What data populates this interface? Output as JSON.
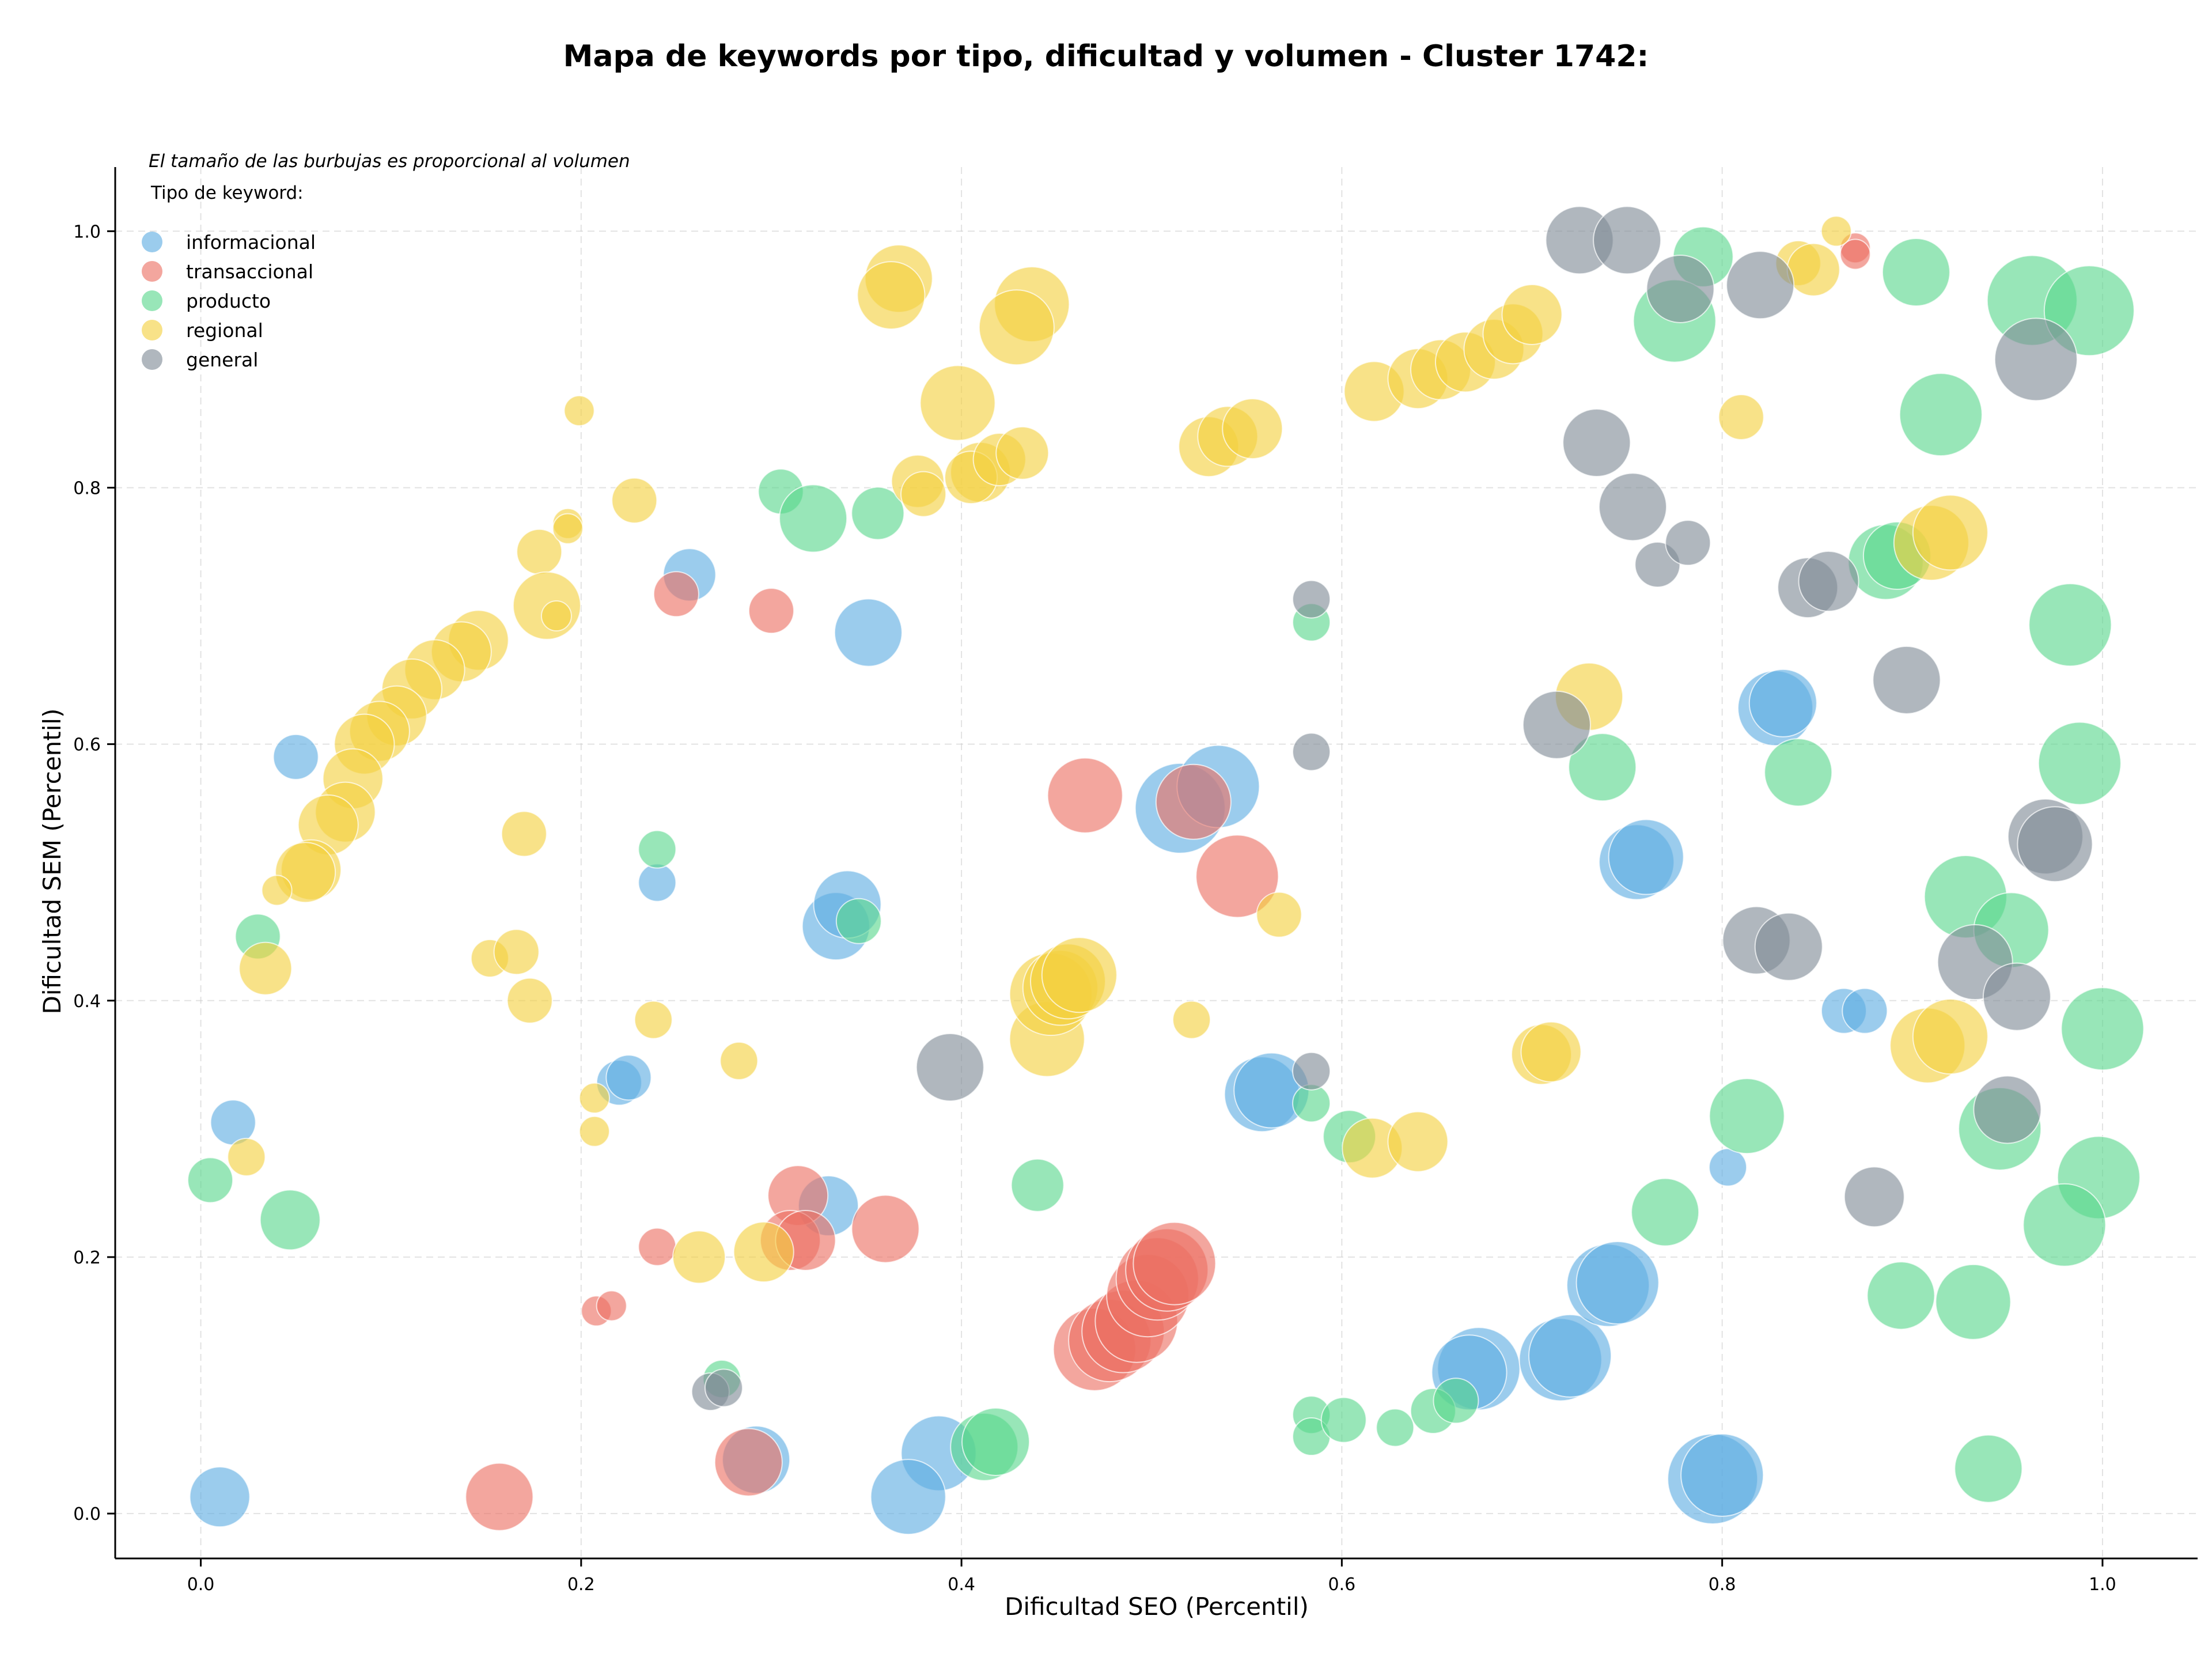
{
  "chart_data": {
    "type": "scatter",
    "title": "Mapa de keywords por tipo, dificultad y volumen - Cluster 1742:",
    "xlabel": "Dificultad SEO (Percentil)",
    "ylabel": "Dificultad SEM (Percentil)",
    "xlim": [
      -0.045,
      1.05
    ],
    "ylim": [
      -0.035,
      1.05
    ],
    "xticks": [
      "0.0",
      "0.2",
      "0.4",
      "0.6",
      "0.8",
      "1.0"
    ],
    "yticks": [
      "0.0",
      "0.2",
      "0.4",
      "0.6",
      "0.8",
      "1.0"
    ],
    "grid": true,
    "annotation": "El tamaño de las burbujas es proporcional al volumen",
    "legend_title": "Tipo de keyword:",
    "legend_position": "top-left",
    "series": [
      {
        "name": "informacional",
        "color": "#5dade2",
        "points": [
          [
            0.05,
            0.59,
            0.3
          ],
          [
            0.017,
            0.305,
            0.3
          ],
          [
            0.01,
            0.013,
            0.4
          ],
          [
            0.257,
            0.732,
            0.35
          ],
          [
            0.351,
            0.687,
            0.45
          ],
          [
            0.24,
            0.492,
            0.25
          ],
          [
            0.22,
            0.336,
            0.3
          ],
          [
            0.225,
            0.34,
            0.3
          ],
          [
            0.334,
            0.458,
            0.45
          ],
          [
            0.34,
            0.475,
            0.45
          ],
          [
            0.33,
            0.24,
            0.4
          ],
          [
            0.292,
            0.042,
            0.45
          ],
          [
            0.388,
            0.047,
            0.5
          ],
          [
            0.372,
            0.013,
            0.5
          ],
          [
            0.515,
            0.55,
            0.6
          ],
          [
            0.535,
            0.567,
            0.55
          ],
          [
            0.558,
            0.327,
            0.5
          ],
          [
            0.563,
            0.33,
            0.5
          ],
          [
            0.672,
            0.113,
            0.55
          ],
          [
            0.667,
            0.11,
            0.5
          ],
          [
            0.715,
            0.12,
            0.55
          ],
          [
            0.72,
            0.123,
            0.55
          ],
          [
            0.74,
            0.178,
            0.55
          ],
          [
            0.745,
            0.18,
            0.55
          ],
          [
            0.755,
            0.508,
            0.5
          ],
          [
            0.76,
            0.512,
            0.5
          ],
          [
            0.795,
            0.027,
            0.6
          ],
          [
            0.8,
            0.03,
            0.55
          ],
          [
            0.828,
            0.628,
            0.5
          ],
          [
            0.832,
            0.632,
            0.45
          ],
          [
            0.803,
            0.27,
            0.25
          ],
          [
            0.864,
            0.392,
            0.3
          ],
          [
            0.875,
            0.392,
            0.3
          ]
        ]
      },
      {
        "name": "transaccional",
        "color": "#ec7063",
        "points": [
          [
            0.25,
            0.717,
            0.3
          ],
          [
            0.3,
            0.704,
            0.3
          ],
          [
            0.208,
            0.158,
            0.2
          ],
          [
            0.216,
            0.162,
            0.2
          ],
          [
            0.24,
            0.208,
            0.25
          ],
          [
            0.314,
            0.248,
            0.4
          ],
          [
            0.31,
            0.213,
            0.4
          ],
          [
            0.318,
            0.213,
            0.4
          ],
          [
            0.36,
            0.222,
            0.45
          ],
          [
            0.157,
            0.013,
            0.45
          ],
          [
            0.288,
            0.04,
            0.45
          ],
          [
            0.465,
            0.56,
            0.5
          ],
          [
            0.545,
            0.497,
            0.55
          ],
          [
            0.522,
            0.555,
            0.5
          ],
          [
            0.47,
            0.128,
            0.55
          ],
          [
            0.478,
            0.135,
            0.55
          ],
          [
            0.485,
            0.142,
            0.55
          ],
          [
            0.492,
            0.15,
            0.55
          ],
          [
            0.498,
            0.17,
            0.55
          ],
          [
            0.503,
            0.183,
            0.55
          ],
          [
            0.508,
            0.19,
            0.55
          ],
          [
            0.512,
            0.195,
            0.55
          ],
          [
            0.87,
            0.987,
            0.2
          ],
          [
            0.87,
            0.982,
            0.2
          ]
        ]
      },
      {
        "name": "producto",
        "color": "#58d68d",
        "points": [
          [
            0.005,
            0.26,
            0.3
          ],
          [
            0.03,
            0.45,
            0.3
          ],
          [
            0.047,
            0.229,
            0.4
          ],
          [
            0.24,
            0.518,
            0.25
          ],
          [
            0.305,
            0.797,
            0.3
          ],
          [
            0.322,
            0.776,
            0.45
          ],
          [
            0.356,
            0.78,
            0.35
          ],
          [
            0.346,
            0.462,
            0.3
          ],
          [
            0.274,
            0.105,
            0.25
          ],
          [
            0.412,
            0.052,
            0.45
          ],
          [
            0.418,
            0.056,
            0.45
          ],
          [
            0.44,
            0.256,
            0.35
          ],
          [
            0.584,
            0.695,
            0.25
          ],
          [
            0.584,
            0.32,
            0.25
          ],
          [
            0.604,
            0.294,
            0.35
          ],
          [
            0.584,
            0.077,
            0.25
          ],
          [
            0.584,
            0.06,
            0.25
          ],
          [
            0.601,
            0.073,
            0.3
          ],
          [
            0.628,
            0.067,
            0.25
          ],
          [
            0.648,
            0.08,
            0.3
          ],
          [
            0.66,
            0.088,
            0.3
          ],
          [
            0.737,
            0.582,
            0.45
          ],
          [
            0.79,
            0.98,
            0.4
          ],
          [
            0.775,
            0.93,
            0.55
          ],
          [
            0.77,
            0.235,
            0.45
          ],
          [
            0.813,
            0.31,
            0.5
          ],
          [
            0.84,
            0.578,
            0.45
          ],
          [
            0.886,
            0.742,
            0.5
          ],
          [
            0.892,
            0.747,
            0.45
          ],
          [
            0.902,
            0.968,
            0.45
          ],
          [
            0.915,
            0.857,
            0.55
          ],
          [
            0.928,
            0.481,
            0.55
          ],
          [
            0.952,
            0.455,
            0.5
          ],
          [
            0.946,
            0.3,
            0.55
          ],
          [
            0.963,
            0.946,
            0.6
          ],
          [
            0.993,
            0.938,
            0.6
          ],
          [
            0.983,
            0.693,
            0.55
          ],
          [
            0.988,
            0.585,
            0.55
          ],
          [
            1.0,
            0.378,
            0.55
          ],
          [
            0.998,
            0.262,
            0.55
          ],
          [
            0.98,
            0.225,
            0.55
          ],
          [
            0.894,
            0.17,
            0.45
          ],
          [
            0.932,
            0.165,
            0.5
          ],
          [
            0.94,
            0.035,
            0.45
          ]
        ]
      },
      {
        "name": "regional",
        "color": "#f4d03f",
        "points": [
          [
            0.199,
            0.86,
            0.2
          ],
          [
            0.228,
            0.79,
            0.3
          ],
          [
            0.178,
            0.75,
            0.3
          ],
          [
            0.193,
            0.772,
            0.2
          ],
          [
            0.193,
            0.768,
            0.2
          ],
          [
            0.182,
            0.708,
            0.45
          ],
          [
            0.187,
            0.7,
            0.2
          ],
          [
            0.146,
            0.681,
            0.4
          ],
          [
            0.137,
            0.672,
            0.4
          ],
          [
            0.123,
            0.658,
            0.4
          ],
          [
            0.111,
            0.643,
            0.4
          ],
          [
            0.103,
            0.622,
            0.4
          ],
          [
            0.094,
            0.61,
            0.4
          ],
          [
            0.086,
            0.6,
            0.4
          ],
          [
            0.08,
            0.573,
            0.4
          ],
          [
            0.076,
            0.547,
            0.4
          ],
          [
            0.067,
            0.537,
            0.4
          ],
          [
            0.058,
            0.502,
            0.4
          ],
          [
            0.055,
            0.5,
            0.4
          ],
          [
            0.04,
            0.486,
            0.2
          ],
          [
            0.034,
            0.425,
            0.35
          ],
          [
            0.024,
            0.278,
            0.25
          ],
          [
            0.17,
            0.53,
            0.3
          ],
          [
            0.152,
            0.433,
            0.25
          ],
          [
            0.166,
            0.438,
            0.3
          ],
          [
            0.173,
            0.4,
            0.3
          ],
          [
            0.238,
            0.385,
            0.25
          ],
          [
            0.207,
            0.324,
            0.2
          ],
          [
            0.207,
            0.298,
            0.2
          ],
          [
            0.283,
            0.353,
            0.25
          ],
          [
            0.262,
            0.2,
            0.35
          ],
          [
            0.296,
            0.204,
            0.4
          ],
          [
            0.367,
            0.963,
            0.45
          ],
          [
            0.363,
            0.95,
            0.45
          ],
          [
            0.437,
            0.943,
            0.5
          ],
          [
            0.429,
            0.925,
            0.5
          ],
          [
            0.398,
            0.866,
            0.5
          ],
          [
            0.41,
            0.812,
            0.4
          ],
          [
            0.405,
            0.808,
            0.35
          ],
          [
            0.42,
            0.822,
            0.35
          ],
          [
            0.432,
            0.827,
            0.35
          ],
          [
            0.377,
            0.805,
            0.35
          ],
          [
            0.38,
            0.795,
            0.3
          ],
          [
            0.445,
            0.37,
            0.5
          ],
          [
            0.447,
            0.405,
            0.55
          ],
          [
            0.452,
            0.41,
            0.5
          ],
          [
            0.456,
            0.415,
            0.5
          ],
          [
            0.462,
            0.42,
            0.5
          ],
          [
            0.567,
            0.467,
            0.3
          ],
          [
            0.521,
            0.385,
            0.25
          ],
          [
            0.53,
            0.832,
            0.4
          ],
          [
            0.54,
            0.84,
            0.4
          ],
          [
            0.553,
            0.846,
            0.4
          ],
          [
            0.617,
            0.875,
            0.4
          ],
          [
            0.64,
            0.885,
            0.4
          ],
          [
            0.652,
            0.892,
            0.4
          ],
          [
            0.665,
            0.898,
            0.4
          ],
          [
            0.68,
            0.908,
            0.4
          ],
          [
            0.69,
            0.92,
            0.4
          ],
          [
            0.7,
            0.935,
            0.4
          ],
          [
            0.616,
            0.285,
            0.4
          ],
          [
            0.64,
            0.29,
            0.4
          ],
          [
            0.705,
            0.358,
            0.4
          ],
          [
            0.71,
            0.36,
            0.4
          ],
          [
            0.73,
            0.637,
            0.45
          ],
          [
            0.81,
            0.855,
            0.3
          ],
          [
            0.84,
            0.975,
            0.3
          ],
          [
            0.848,
            0.97,
            0.35
          ],
          [
            0.86,
            1.0,
            0.2
          ],
          [
            0.91,
            0.757,
            0.5
          ],
          [
            0.92,
            0.765,
            0.5
          ],
          [
            0.908,
            0.365,
            0.5
          ],
          [
            0.92,
            0.372,
            0.5
          ]
        ]
      },
      {
        "name": "general",
        "color": "#808b96",
        "points": [
          [
            0.394,
            0.348,
            0.45
          ],
          [
            0.268,
            0.095,
            0.25
          ],
          [
            0.275,
            0.098,
            0.25
          ],
          [
            0.584,
            0.713,
            0.25
          ],
          [
            0.584,
            0.594,
            0.25
          ],
          [
            0.584,
            0.345,
            0.25
          ],
          [
            0.725,
            0.993,
            0.45
          ],
          [
            0.75,
            0.993,
            0.45
          ],
          [
            0.778,
            0.955,
            0.45
          ],
          [
            0.82,
            0.958,
            0.45
          ],
          [
            0.734,
            0.835,
            0.45
          ],
          [
            0.753,
            0.785,
            0.45
          ],
          [
            0.766,
            0.74,
            0.3
          ],
          [
            0.782,
            0.757,
            0.3
          ],
          [
            0.845,
            0.722,
            0.4
          ],
          [
            0.856,
            0.727,
            0.4
          ],
          [
            0.713,
            0.615,
            0.45
          ],
          [
            0.897,
            0.65,
            0.45
          ],
          [
            0.818,
            0.447,
            0.45
          ],
          [
            0.835,
            0.442,
            0.45
          ],
          [
            0.88,
            0.247,
            0.4
          ],
          [
            0.933,
            0.43,
            0.5
          ],
          [
            0.955,
            0.403,
            0.45
          ],
          [
            0.95,
            0.315,
            0.45
          ],
          [
            0.965,
            0.9,
            0.55
          ],
          [
            0.97,
            0.528,
            0.5
          ],
          [
            0.975,
            0.522,
            0.5
          ]
        ]
      }
    ]
  }
}
